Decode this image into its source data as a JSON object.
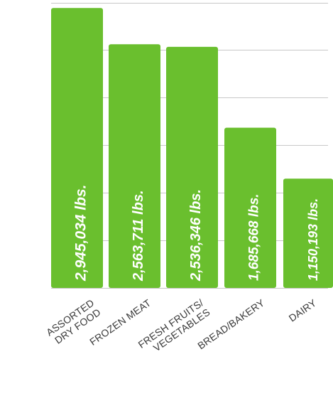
{
  "chart_data": {
    "type": "bar",
    "title": "",
    "xlabel": "",
    "ylabel": "",
    "categories": [
      "ASSORTED DRY FOOD",
      "FROZEN MEAT",
      "FRESH FRUITS/ VEGETABLES",
      "BREAD/BAKERY",
      "DAIRY"
    ],
    "category_lines": [
      [
        "ASSORTED",
        "DRY FOOD"
      ],
      [
        "FROZEN MEAT"
      ],
      [
        "FRESH FRUITS/",
        "VEGETABLES"
      ],
      [
        "BREAD/BAKERY"
      ],
      [
        "DAIRY"
      ]
    ],
    "values": [
      2945034,
      2563711,
      2536346,
      1685668,
      1150193
    ],
    "value_labels": [
      "2,945,034 lbs.",
      "2,563,711 lbs.",
      "2,536,346 lbs.",
      "1,685,668 lbs.",
      "1,150,193 lbs."
    ],
    "ylim": [
      0,
      3000000
    ],
    "grid": true,
    "bar_color": "#6abf2e",
    "grid_color": "#c8c8c8",
    "label_color": "#3a3a3a",
    "value_label_color": "#ffffff"
  }
}
